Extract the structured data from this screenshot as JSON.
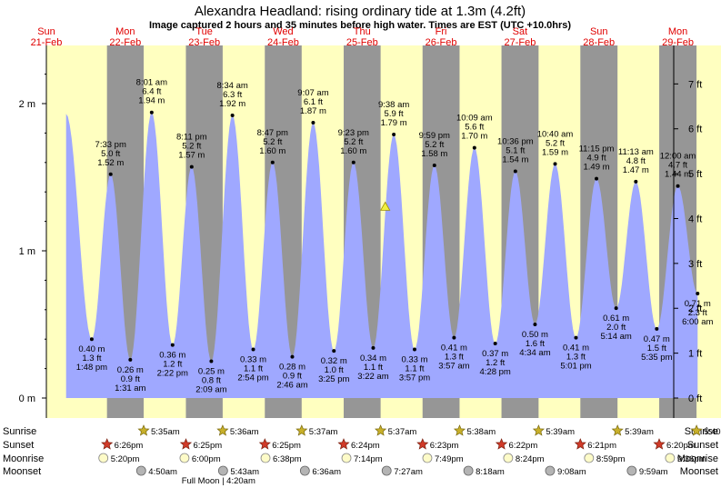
{
  "title": "Alexandra Headland: rising  ordinary tide at 1.3m (4.2ft)",
  "subtitle": "Image captured 2 hours and 35 minutes before high water. Times are EST (UTC +10.0hrs)",
  "colors": {
    "tide": "#9fa8ff",
    "day": "#ffffc0",
    "night": "#969696",
    "day_label": "#e00000",
    "sun": "#c8b02a",
    "sunset": "#d03a28",
    "moon": "#fdfbc8",
    "moonset": "#b4b4b4"
  },
  "days": [
    {
      "dow": "Sun",
      "date": "21-Feb"
    },
    {
      "dow": "Mon",
      "date": "22-Feb"
    },
    {
      "dow": "Tue",
      "date": "23-Feb"
    },
    {
      "dow": "Wed",
      "date": "24-Feb"
    },
    {
      "dow": "Thu",
      "date": "25-Feb"
    },
    {
      "dow": "Fri",
      "date": "26-Feb"
    },
    {
      "dow": "Sat",
      "date": "27-Feb"
    },
    {
      "dow": "Sun",
      "date": "28-Feb"
    },
    {
      "dow": "Mon",
      "date": "29-Feb"
    }
  ],
  "chart_data": {
    "type": "area",
    "x_unit": "hours from 21-Feb 00:00 EST",
    "y_unit": "m",
    "ylim": [
      -0.05,
      2.27
    ],
    "yticks_m": [
      "0 m",
      "1 m",
      "2 m"
    ],
    "yticks_ft": [
      "0 ft",
      "1 ft",
      "2 ft",
      "3 ft",
      "4 ft",
      "5 ft",
      "6 ft",
      "7 ft"
    ],
    "start": {
      "x": 6.0,
      "y": 1.93
    },
    "end": {
      "x": 198.0,
      "y": 0.71
    },
    "extremes": [
      {
        "x": 13.8,
        "y": 0.4,
        "type": "low",
        "time": "1:48 pm",
        "ft": "1.3 ft",
        "m": "0.40 m"
      },
      {
        "x": 19.55,
        "y": 1.52,
        "type": "high",
        "time": "7:33 pm",
        "ft": "5.0 ft",
        "m": "1.52 m"
      },
      {
        "x": 25.52,
        "y": 0.26,
        "type": "low",
        "time": "1:31 am",
        "ft": "0.9 ft",
        "m": "0.26 m"
      },
      {
        "x": 32.02,
        "y": 1.94,
        "type": "high",
        "time": "8:01 am",
        "ft": "6.4 ft",
        "m": "1.94 m"
      },
      {
        "x": 38.37,
        "y": 0.36,
        "type": "low",
        "time": "2:22 pm",
        "ft": "1.2 ft",
        "m": "0.36 m"
      },
      {
        "x": 44.18,
        "y": 1.57,
        "type": "high",
        "time": "8:11 pm",
        "ft": "5.2 ft",
        "m": "1.57 m"
      },
      {
        "x": 50.15,
        "y": 0.25,
        "type": "low",
        "time": "2:09 am",
        "ft": "0.8 ft",
        "m": "0.25 m"
      },
      {
        "x": 56.57,
        "y": 1.92,
        "type": "high",
        "time": "8:34 am",
        "ft": "6.3 ft",
        "m": "1.92 m"
      },
      {
        "x": 62.9,
        "y": 0.33,
        "type": "low",
        "time": "2:54 pm",
        "ft": "1.1 ft",
        "m": "0.33 m"
      },
      {
        "x": 68.78,
        "y": 1.6,
        "type": "high",
        "time": "8:47 pm",
        "ft": "5.2 ft",
        "m": "1.60 m"
      },
      {
        "x": 74.77,
        "y": 0.28,
        "type": "low",
        "time": "2:46 am",
        "ft": "0.9 ft",
        "m": "0.28 m"
      },
      {
        "x": 81.12,
        "y": 1.87,
        "type": "high",
        "time": "9:07 am",
        "ft": "6.1 ft",
        "m": "1.87 m"
      },
      {
        "x": 87.42,
        "y": 0.32,
        "type": "low",
        "time": "3:25 pm",
        "ft": "1.0 ft",
        "m": "0.32 m"
      },
      {
        "x": 93.38,
        "y": 1.6,
        "type": "high",
        "time": "9:23 pm",
        "ft": "5.2 ft",
        "m": "1.60 m"
      },
      {
        "x": 99.37,
        "y": 0.34,
        "type": "low",
        "time": "3:22 am",
        "ft": "1.1 ft",
        "m": "0.34 m"
      },
      {
        "x": 105.63,
        "y": 1.79,
        "type": "high",
        "time": "9:38 am",
        "ft": "5.9 ft",
        "m": "1.79 m"
      },
      {
        "x": 111.95,
        "y": 0.33,
        "type": "low",
        "time": "3:57 pm",
        "ft": "1.1 ft",
        "m": "0.33 m"
      },
      {
        "x": 117.98,
        "y": 1.58,
        "type": "high",
        "time": "9:59 pm",
        "ft": "5.2 ft",
        "m": "1.58 m"
      },
      {
        "x": 123.95,
        "y": 0.41,
        "type": "low",
        "time": "3:57 am",
        "ft": "1.3 ft",
        "m": "0.41 m"
      },
      {
        "x": 130.15,
        "y": 1.7,
        "type": "high",
        "time": "10:09 am",
        "ft": "5.6 ft",
        "m": "1.70 m"
      },
      {
        "x": 136.47,
        "y": 0.37,
        "type": "low",
        "time": "4:28 pm",
        "ft": "1.2 ft",
        "m": "0.37 m"
      },
      {
        "x": 142.6,
        "y": 1.54,
        "type": "high",
        "time": "10:36 pm",
        "ft": "5.1 ft",
        "m": "1.54 m"
      },
      {
        "x": 148.57,
        "y": 0.5,
        "type": "low",
        "time": "4:34 am",
        "ft": "1.6 ft",
        "m": "0.50 m"
      },
      {
        "x": 154.67,
        "y": 1.59,
        "type": "high",
        "time": "10:40 am",
        "ft": "5.2 ft",
        "m": "1.59 m"
      },
      {
        "x": 161.02,
        "y": 0.41,
        "type": "low",
        "time": "5:01 pm",
        "ft": "1.3 ft",
        "m": "0.41 m"
      },
      {
        "x": 167.25,
        "y": 1.49,
        "type": "high",
        "time": "11:15 pm",
        "ft": "4.9 ft",
        "m": "1.49 m"
      },
      {
        "x": 173.23,
        "y": 0.61,
        "type": "low",
        "time": "5:14 am",
        "ft": "2.0 ft",
        "m": "0.61 m"
      },
      {
        "x": 179.22,
        "y": 1.47,
        "type": "high",
        "time": "11:13 am",
        "ft": "4.8 ft",
        "m": "1.47 m"
      },
      {
        "x": 185.58,
        "y": 0.47,
        "type": "low",
        "time": "5:35 pm",
        "ft": "1.5 ft",
        "m": "0.47 m"
      },
      {
        "x": 192.0,
        "y": 1.44,
        "type": "high",
        "time": "12:00 am",
        "ft": "4.7 ft",
        "m": "1.44 m"
      },
      {
        "x": 198.0,
        "y": 0.71,
        "type": "low",
        "time": "6:00 am",
        "ft": "2.3 ft",
        "m": "0.71 m"
      }
    ],
    "current": {
      "x": 103.03,
      "y": 1.3
    }
  },
  "astro": {
    "row_labels": {
      "sunrise": "Sunrise",
      "sunset": "Sunset",
      "moonrise": "Moonrise",
      "moonset": "Moonset"
    },
    "sunrise": [
      {
        "x": 29.58,
        "t": "5:35am"
      },
      {
        "x": 53.6,
        "t": "5:36am"
      },
      {
        "x": 77.62,
        "t": "5:37am"
      },
      {
        "x": 101.62,
        "t": "5:37am"
      },
      {
        "x": 125.63,
        "t": "5:38am"
      },
      {
        "x": 149.65,
        "t": "5:39am"
      },
      {
        "x": 173.65,
        "t": "5:39am"
      },
      {
        "x": 197.67,
        "t": "5:40am"
      }
    ],
    "sunset": [
      {
        "x": 18.43,
        "t": "6:26pm"
      },
      {
        "x": 42.42,
        "t": "6:25pm"
      },
      {
        "x": 66.42,
        "t": "6:25pm"
      },
      {
        "x": 90.4,
        "t": "6:24pm"
      },
      {
        "x": 114.38,
        "t": "6:23pm"
      },
      {
        "x": 138.37,
        "t": "6:22pm"
      },
      {
        "x": 162.35,
        "t": "6:21pm"
      },
      {
        "x": 186.33,
        "t": "6:20pm"
      }
    ],
    "moonrise": [
      {
        "x": 17.33,
        "t": "5:20pm"
      },
      {
        "x": 42.0,
        "t": "6:00pm"
      },
      {
        "x": 66.63,
        "t": "6:38pm"
      },
      {
        "x": 91.23,
        "t": "7:14pm"
      },
      {
        "x": 115.82,
        "t": "7:49pm"
      },
      {
        "x": 140.4,
        "t": "8:24pm"
      },
      {
        "x": 164.98,
        "t": "8:59pm"
      },
      {
        "x": 189.6,
        "t": "9:36pm"
      }
    ],
    "moonset": [
      {
        "x": 28.83,
        "t": "4:50am"
      },
      {
        "x": 53.72,
        "t": "5:43am"
      },
      {
        "x": 78.6,
        "t": "6:36am"
      },
      {
        "x": 103.45,
        "t": "7:27am"
      },
      {
        "x": 128.3,
        "t": "8:18am"
      },
      {
        "x": 153.13,
        "t": "9:08am"
      },
      {
        "x": 177.98,
        "t": "9:59am"
      }
    ],
    "moon_phase": {
      "x": 52.33,
      "label": "Full Moon | 4:20am"
    }
  }
}
